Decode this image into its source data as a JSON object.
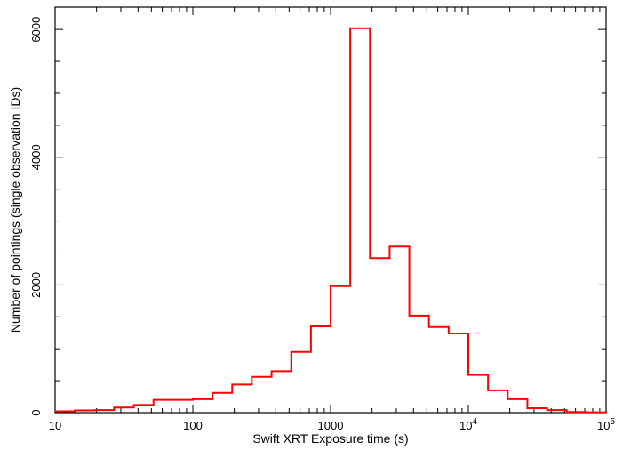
{
  "chart_data": {
    "type": "bar",
    "style": "step-histogram",
    "xlabel": "Swift XRT Exposure time (s)",
    "ylabel": "Number of pointings (single observation IDs)",
    "xscale": "log",
    "xlim": [
      10,
      100000
    ],
    "ylim": [
      0,
      6350
    ],
    "grid": false,
    "line_color": "#ff0000",
    "x_ticks": [
      {
        "base": "10",
        "exp": ""
      },
      {
        "base": "100",
        "exp": ""
      },
      {
        "base": "1000",
        "exp": ""
      },
      {
        "base": "10",
        "exp": "4"
      },
      {
        "base": "10",
        "exp": "5"
      }
    ],
    "y_ticks": [
      "0",
      "2000",
      "4000",
      "6000"
    ],
    "bin_edges": [
      10,
      13.9,
      19.3,
      26.8,
      37.3,
      51.8,
      72,
      100,
      139,
      193,
      268,
      373,
      518,
      720,
      1000,
      1389,
      1931,
      2683,
      3728,
      5179,
      7197,
      10000,
      13895,
      19307,
      26827,
      37276,
      51795,
      71969,
      100000
    ],
    "counts": [
      20,
      35,
      40,
      80,
      120,
      200,
      200,
      210,
      310,
      440,
      560,
      650,
      950,
      1350,
      1980,
      6020,
      2420,
      2600,
      1520,
      1340,
      1240,
      590,
      350,
      210,
      70,
      40,
      10,
      5,
      0
    ]
  }
}
